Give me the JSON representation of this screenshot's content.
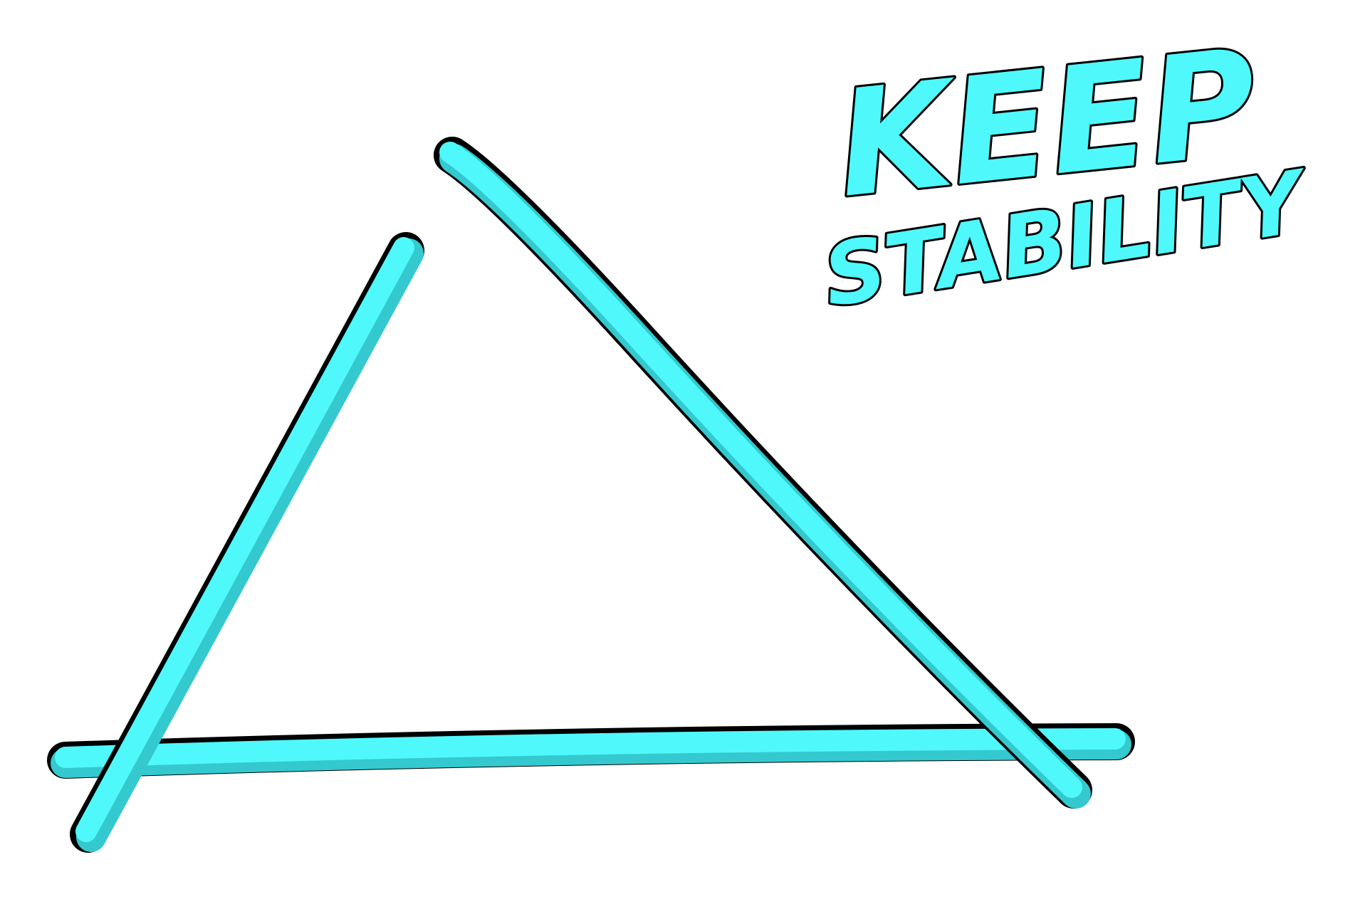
{
  "slogan": {
    "line1": "KEEP",
    "line2": "STABILITY"
  },
  "colors": {
    "stick_fill": "#4ff8fb",
    "stick_shade": "#34c9cf",
    "outline": "#000000",
    "background": "#ffffff"
  }
}
